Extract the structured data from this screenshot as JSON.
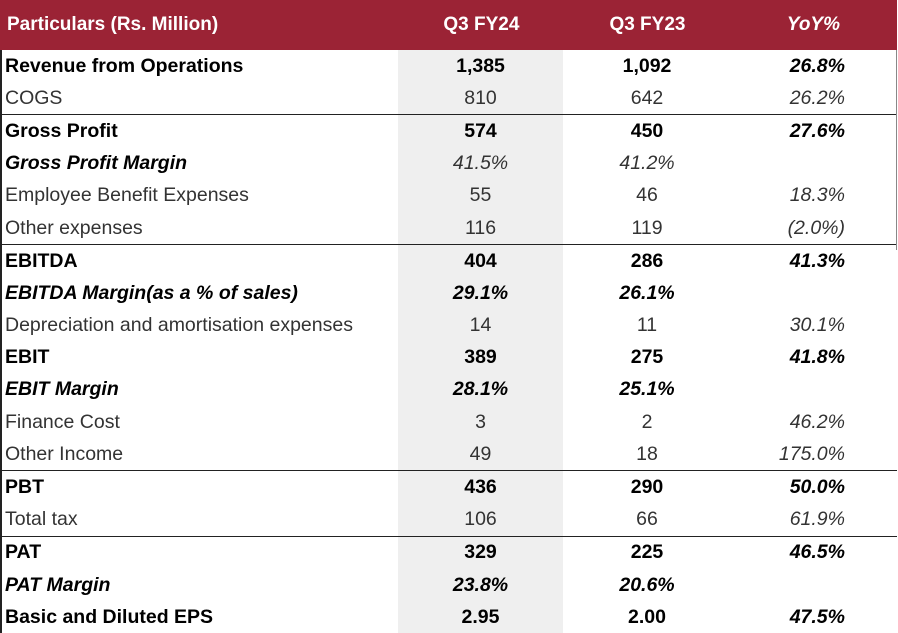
{
  "header": {
    "particulars": "Particulars (Rs. Million)",
    "q3fy24": "Q3 FY24",
    "q3fy23": "Q3 FY23",
    "yoy": "YoY%"
  },
  "rows": [
    {
      "label": "Revenue from Operations",
      "q3fy24": "1,385",
      "q3fy23": "1,092",
      "yoy": "26.8%"
    },
    {
      "label": "COGS",
      "q3fy24": "810",
      "q3fy23": "642",
      "yoy": "26.2%"
    },
    {
      "label": "Gross Profit",
      "q3fy24": "574",
      "q3fy23": "450",
      "yoy": "27.6%"
    },
    {
      "label": "Gross Profit Margin",
      "q3fy24": "41.5%",
      "q3fy23": "41.2%",
      "yoy": ""
    },
    {
      "label": "Employee Benefit Expenses",
      "q3fy24": "55",
      "q3fy23": "46",
      "yoy": "18.3%"
    },
    {
      "label": "Other expenses",
      "q3fy24": "116",
      "q3fy23": "119",
      "yoy": "(2.0%)"
    },
    {
      "label": "EBITDA",
      "q3fy24": "404",
      "q3fy23": "286",
      "yoy": "41.3%"
    },
    {
      "label": "EBITDA Margin(as a % of sales)",
      "q3fy24": "29.1%",
      "q3fy23": "26.1%",
      "yoy": ""
    },
    {
      "label": "Depreciation and amortisation expenses",
      "q3fy24": "14",
      "q3fy23": "11",
      "yoy": "30.1%"
    },
    {
      "label": "EBIT",
      "q3fy24": "389",
      "q3fy23": "275",
      "yoy": "41.8%"
    },
    {
      "label": "EBIT Margin",
      "q3fy24": "28.1%",
      "q3fy23": "25.1%",
      "yoy": ""
    },
    {
      "label": "Finance Cost",
      "q3fy24": "3",
      "q3fy23": "2",
      "yoy": "46.2%"
    },
    {
      "label": "Other Income",
      "q3fy24": "49",
      "q3fy23": "18",
      "yoy": "175.0%"
    },
    {
      "label": "PBT",
      "q3fy24": "436",
      "q3fy23": "290",
      "yoy": "50.0%"
    },
    {
      "label": "Total tax",
      "q3fy24": "106",
      "q3fy23": "66",
      "yoy": "61.9%"
    },
    {
      "label": "PAT",
      "q3fy24": "329",
      "q3fy23": "225",
      "yoy": "46.5%"
    },
    {
      "label": "PAT Margin",
      "q3fy24": "23.8%",
      "q3fy23": "20.6%",
      "yoy": ""
    },
    {
      "label": "Basic and Diluted EPS",
      "q3fy24": "2.95",
      "q3fy23": "2.00",
      "yoy": "47.5%"
    }
  ],
  "colors": {
    "header_bg": "#9b2335",
    "header_text": "#ffffff",
    "shade": "#efefef"
  }
}
